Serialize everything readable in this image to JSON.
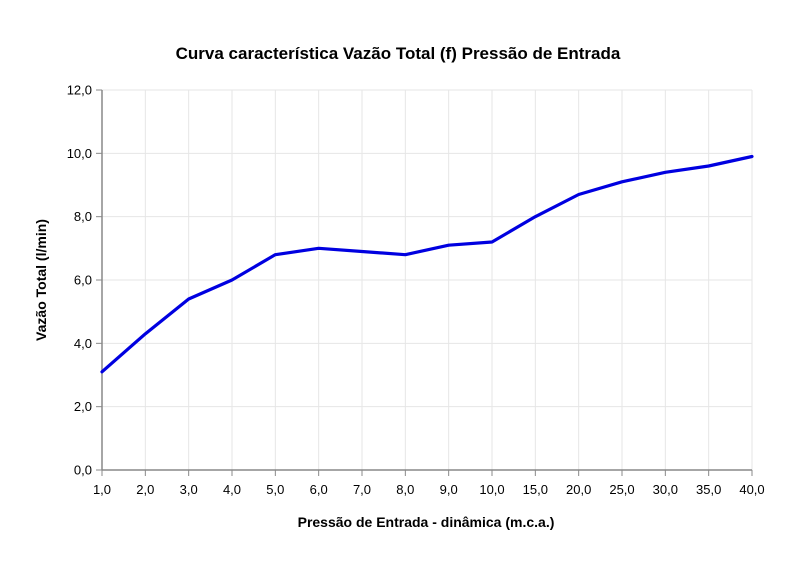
{
  "chart_data": {
    "type": "line",
    "title": "Curva característica Vazão Total (f) Pressão de Entrada",
    "xlabel": "Pressão de Entrada - dinâmica (m.c.a.)",
    "ylabel": "Vazão Total (l/min)",
    "categories": [
      "1,0",
      "2,0",
      "3,0",
      "4,0",
      "5,0",
      "6,0",
      "7,0",
      "8,0",
      "9,0",
      "10,0",
      "15,0",
      "20,0",
      "25,0",
      "30,0",
      "35,0",
      "40,0"
    ],
    "y_ticks": [
      "0,0",
      "2,0",
      "4,0",
      "6,0",
      "8,0",
      "10,0",
      "12,0"
    ],
    "ylim": [
      0,
      12
    ],
    "grid": true,
    "series": [
      {
        "color": "#0000e0",
        "values": [
          3.1,
          4.3,
          5.4,
          6.0,
          6.8,
          7.0,
          6.9,
          6.8,
          7.1,
          7.2,
          8.0,
          8.7,
          9.1,
          9.4,
          9.6,
          9.9
        ]
      }
    ]
  }
}
